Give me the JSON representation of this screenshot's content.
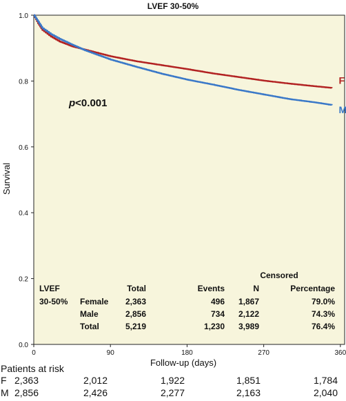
{
  "chart_data": {
    "type": "line",
    "title": "LVEF 30-50%",
    "xlabel": "Follow-up (days)",
    "ylabel": "Survival",
    "xlim": [
      0,
      365
    ],
    "ylim": [
      0.0,
      1.0
    ],
    "xticks": [
      0,
      90,
      180,
      270,
      360
    ],
    "yticks": [
      0.0,
      0.2,
      0.4,
      0.6,
      0.8,
      1.0
    ],
    "ytick_labels": [
      "0.0",
      "0.2",
      "0.4",
      "0.6",
      "0.8",
      "1.0"
    ],
    "background_color": "#f7f5dc",
    "annotation": {
      "prefix": "p",
      "suffix": "<0.001"
    },
    "series": [
      {
        "name": "F",
        "color": "#b22222",
        "x": [
          0,
          5,
          10,
          20,
          30,
          45,
          60,
          90,
          120,
          150,
          180,
          210,
          240,
          270,
          300,
          330,
          350
        ],
        "y": [
          1.0,
          0.975,
          0.955,
          0.935,
          0.92,
          0.905,
          0.895,
          0.875,
          0.86,
          0.848,
          0.836,
          0.823,
          0.812,
          0.801,
          0.792,
          0.784,
          0.779
        ]
      },
      {
        "name": "M",
        "color": "#3a78c8",
        "x": [
          0,
          5,
          10,
          20,
          30,
          45,
          60,
          90,
          120,
          150,
          180,
          210,
          240,
          270,
          300,
          330,
          350
        ],
        "y": [
          1.0,
          0.98,
          0.96,
          0.942,
          0.928,
          0.91,
          0.893,
          0.865,
          0.843,
          0.822,
          0.804,
          0.789,
          0.773,
          0.759,
          0.745,
          0.735,
          0.727
        ]
      }
    ],
    "summary_table": {
      "group_header": "Censored",
      "columns": [
        "LVEF",
        "",
        "Total",
        "Events",
        "N",
        "Percentage"
      ],
      "rows": [
        [
          "30-50%",
          "Female",
          "2,363",
          "496",
          "1,867",
          "79.0%"
        ],
        [
          "",
          "Male",
          "2,856",
          "734",
          "2,122",
          "74.3%"
        ],
        [
          "",
          "Total",
          "5,219",
          "1,230",
          "3,989",
          "76.4%"
        ]
      ]
    },
    "at_risk": {
      "title": "Patients at risk",
      "rows": [
        {
          "label": "F",
          "values": [
            "2,363",
            "2,012",
            "1,922",
            "1,851",
            "1,784"
          ]
        },
        {
          "label": "M",
          "values": [
            "2,856",
            "2,426",
            "2,277",
            "2,163",
            "2,040"
          ]
        }
      ]
    }
  }
}
